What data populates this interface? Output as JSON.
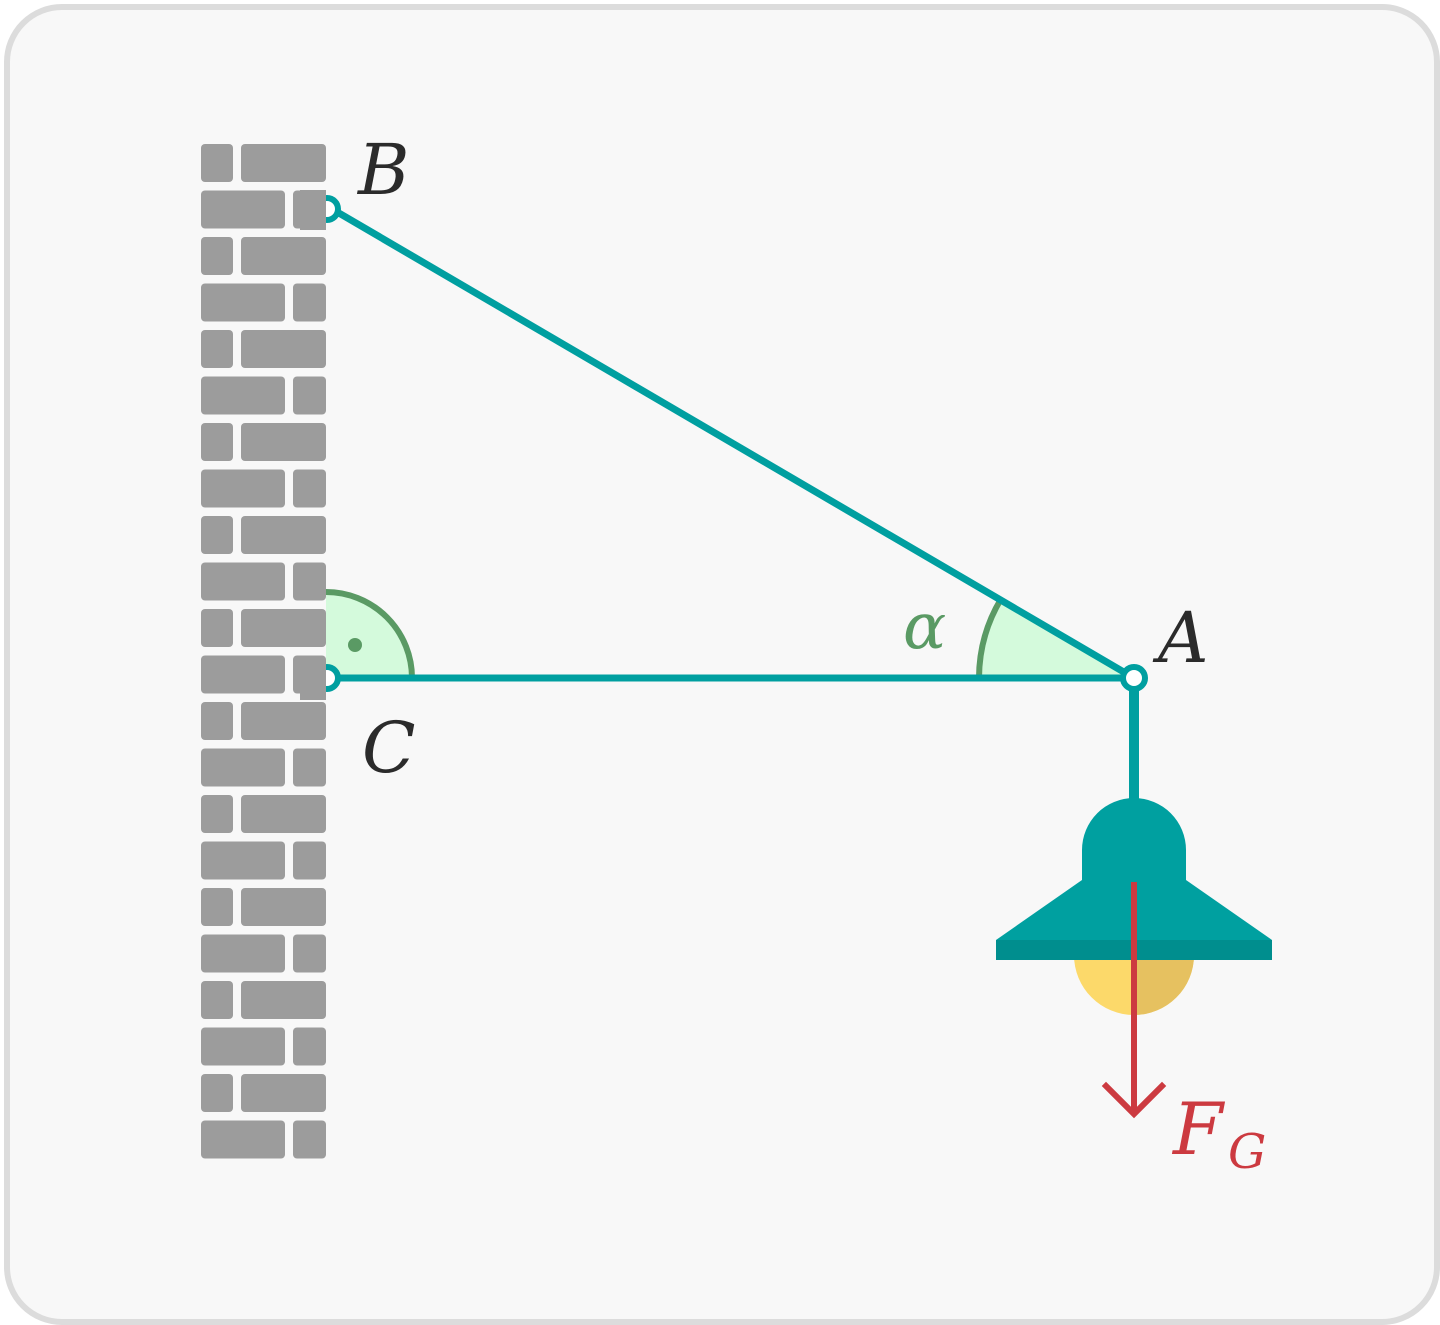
{
  "labels": {
    "point_b": "B",
    "point_a": "A",
    "point_c": "C",
    "angle": "α",
    "force_main": "F",
    "force_sub": "G"
  },
  "colors": {
    "beam": "#009fa0",
    "wall_brick": "#9c9c9c",
    "angle_fill": "#d4fadc",
    "angle_stroke": "#5a9a64",
    "lamp_shade": "#00a0a0",
    "lamp_rim": "#008e8e",
    "bulb": "#fcd96a",
    "force_arrow": "#cc3a40",
    "background": "#f8f8f8",
    "frame_border": "#dcdcdc"
  }
}
